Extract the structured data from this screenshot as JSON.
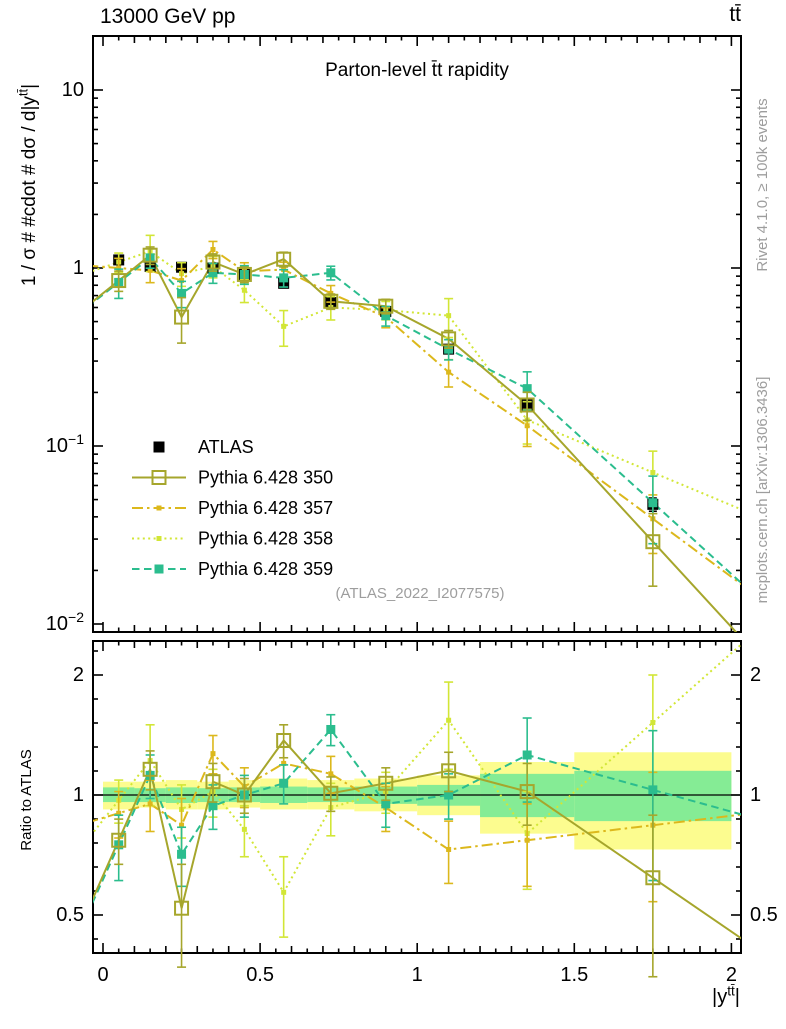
{
  "header": {
    "energy": "13000 GeV pp",
    "process": "tt̄"
  },
  "side_labels": {
    "right_top": "Rivet 4.1.0, ≥ 100k events",
    "right_bottom": "mcplots.cern.ch [arXiv:1306.3436]"
  },
  "watermark": "(ATLAS_2022_I2077575)",
  "chart_data": {
    "type": "line",
    "title": "Parton-level t̄t rapidity",
    "xlabel": {
      "pre": "|y",
      "sup": "tt̄",
      "post": "|"
    },
    "ylabel_top": {
      "pre": "1 / σ # #cdot # dσ / d|y",
      "sup": "tt̄",
      "post": "|"
    },
    "ylabel_ratio": "Ratio to ATLAS",
    "x_range": [
      0,
      2
    ],
    "y_range_top": [
      0.009,
      20
    ],
    "y_scale_top": "log",
    "ratio_range": [
      0.4,
      2.45
    ],
    "ratio_scale": "log",
    "grid": "off",
    "legend_position": "inside-left-middle",
    "x_ticks": [
      {
        "v": 0,
        "label": "0"
      },
      {
        "v": 0.5,
        "label": "0.5"
      },
      {
        "v": 1,
        "label": "1"
      },
      {
        "v": 1.5,
        "label": "1.5"
      },
      {
        "v": 2,
        "label": "2"
      }
    ],
    "y_ticks_top": [
      {
        "v": 10,
        "label": "10"
      },
      {
        "v": 1,
        "label": "1"
      },
      {
        "v": 0.1,
        "label": "10",
        "sup": "−1"
      },
      {
        "v": 0.01,
        "label": "10",
        "sup": "−2"
      }
    ],
    "ratio_ticks": [
      {
        "v": 0.5,
        "label": "0.5"
      },
      {
        "v": 1,
        "label": "1"
      },
      {
        "v": 2,
        "label": "2"
      }
    ],
    "bin_edges": [
      0,
      0.1,
      0.2,
      0.3,
      0.4,
      0.5,
      0.65,
      0.8,
      1.0,
      1.2,
      1.5,
      2.0
    ],
    "x": [
      0.05,
      0.15,
      0.25,
      0.35,
      0.45,
      0.575,
      0.725,
      0.9,
      1.1,
      1.35,
      1.75
    ],
    "series": [
      {
        "name": "ATLAS",
        "role": "reference",
        "color": "#000000",
        "line": "none",
        "marker": "square-filled",
        "marker_size": 11,
        "values": [
          1.11,
          1.02,
          1.01,
          1.0,
          0.92,
          0.82,
          0.64,
          0.57,
          0.35,
          0.17,
          0.047
        ],
        "errors": [
          0.05,
          0.04,
          0.04,
          0.04,
          0.035,
          0.03,
          0.025,
          0.02,
          0.015,
          0.008,
          0.004
        ]
      },
      {
        "name": "Pythia 6.428 350",
        "color": "#a6a62c",
        "line": "solid",
        "marker": "square-open",
        "marker_size": 13,
        "values": [
          0.85,
          1.18,
          0.53,
          1.08,
          0.92,
          1.12,
          0.65,
          0.61,
          0.4,
          0.17,
          0.029
        ],
        "ratio": [
          0.77,
          1.16,
          0.52,
          1.08,
          1.0,
          1.37,
          1.01,
          1.07,
          1.15,
          1.02,
          0.62
        ],
        "ratio_err": [
          0.1,
          0.13,
          0.15,
          0.12,
          0.1,
          0.13,
          0.1,
          0.1,
          0.13,
          0.18,
          0.27
        ]
      },
      {
        "name": "Pythia 6.428 357",
        "color": "#dcb81c",
        "line": "dashdot",
        "marker": "square-small",
        "marker_size": 5,
        "values": [
          1.0,
          0.97,
          0.85,
          1.27,
          0.96,
          0.98,
          0.72,
          0.53,
          0.26,
          0.13,
          0.039
        ],
        "ratio": [
          0.9,
          0.95,
          0.84,
          1.27,
          1.05,
          1.2,
          1.13,
          0.93,
          0.73,
          0.77,
          0.84
        ],
        "ratio_err": [
          0.12,
          0.14,
          0.14,
          0.14,
          0.12,
          0.12,
          0.12,
          0.12,
          0.13,
          0.18,
          0.3
        ]
      },
      {
        "name": "Pythia 6.428 358",
        "color": "#d2e636",
        "line": "dotted",
        "marker": "square-small",
        "marker_size": 5,
        "values": [
          1.08,
          1.24,
          0.93,
          1.02,
          0.75,
          0.47,
          0.6,
          0.58,
          0.54,
          0.14,
          0.071
        ],
        "ratio": [
          0.97,
          1.22,
          0.92,
          1.02,
          0.82,
          0.57,
          0.93,
          1.02,
          1.54,
          0.8,
          1.52
        ],
        "ratio_err": [
          0.12,
          0.28,
          0.14,
          0.14,
          0.12,
          0.13,
          0.14,
          0.12,
          0.38,
          0.22,
          0.48
        ]
      },
      {
        "name": "Pythia 6.428 359",
        "color": "#2bbd8e",
        "line": "dashed",
        "marker": "square-filled",
        "marker_size": 9,
        "values": [
          0.83,
          1.14,
          0.72,
          0.94,
          0.92,
          0.88,
          0.94,
          0.54,
          0.35,
          0.21,
          0.048
        ],
        "ratio": [
          0.75,
          1.12,
          0.71,
          0.94,
          1.0,
          1.07,
          1.46,
          0.95,
          1.0,
          1.26,
          1.03
        ],
        "ratio_err": [
          0.14,
          0.14,
          0.12,
          0.12,
          0.12,
          0.12,
          0.13,
          0.12,
          0.13,
          0.3,
          0.42
        ]
      }
    ],
    "bands": {
      "yellow_color": "#fcfc8f",
      "green_color": "#85ec95",
      "yellow": [
        [
          0.92,
          1.08
        ],
        [
          0.93,
          1.08
        ],
        [
          0.92,
          1.09
        ],
        [
          0.92,
          1.08
        ],
        [
          0.93,
          1.09
        ],
        [
          0.92,
          1.1
        ],
        [
          0.92,
          1.09
        ],
        [
          0.91,
          1.1
        ],
        [
          0.89,
          1.12
        ],
        [
          0.8,
          1.21
        ],
        [
          0.73,
          1.28
        ]
      ],
      "green": [
        [
          0.96,
          1.045
        ],
        [
          0.96,
          1.04
        ],
        [
          0.955,
          1.045
        ],
        [
          0.96,
          1.04
        ],
        [
          0.96,
          1.045
        ],
        [
          0.955,
          1.05
        ],
        [
          0.96,
          1.045
        ],
        [
          0.95,
          1.05
        ],
        [
          0.94,
          1.06
        ],
        [
          0.88,
          1.13
        ],
        [
          0.86,
          1.15
        ]
      ]
    }
  }
}
